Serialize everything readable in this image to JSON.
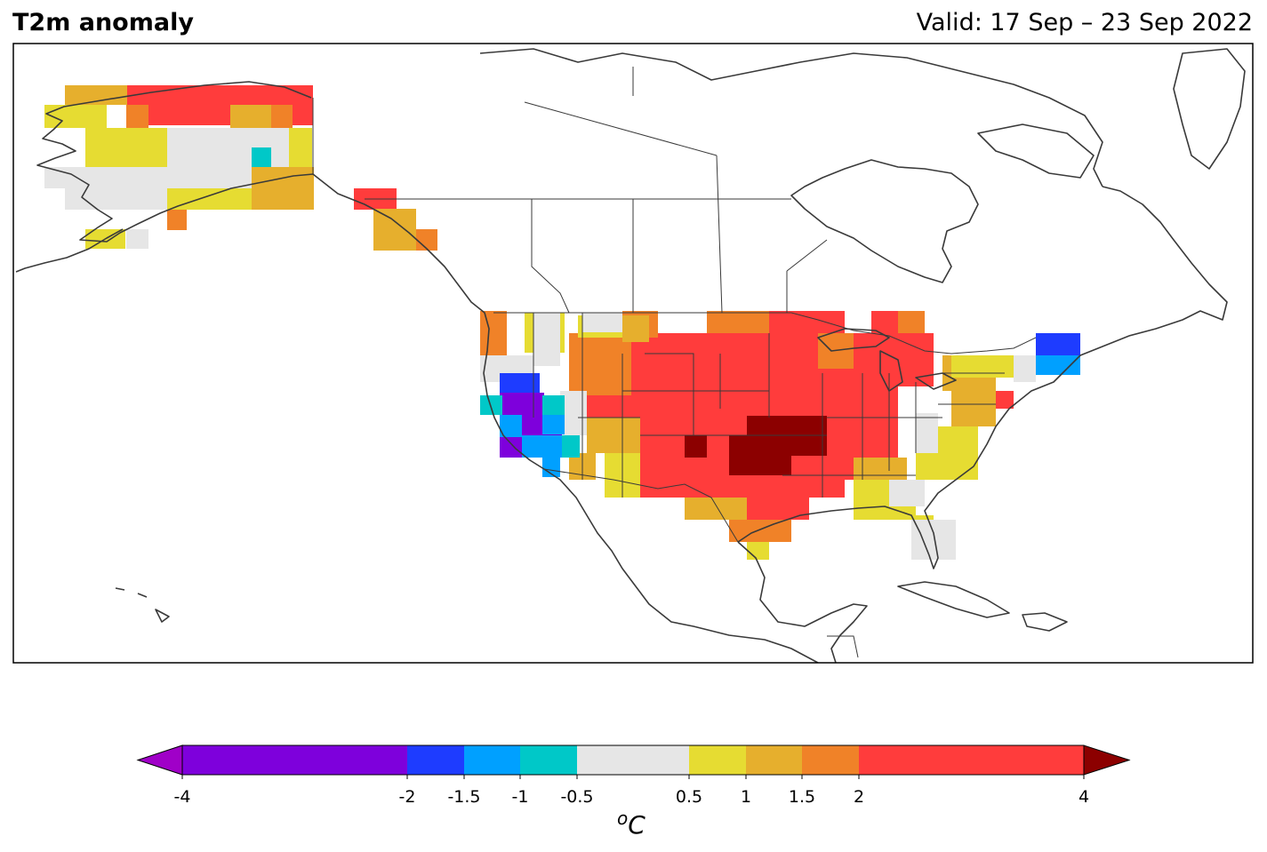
{
  "header": {
    "title": "T2m anomaly",
    "valid": "Valid: 17 Sep – 23 Sep 2022"
  },
  "colorbar": {
    "unit_base": "o",
    "unit_letter": "C",
    "bins": [
      {
        "from": -4,
        "to": -2,
        "color": "#7e00dc"
      },
      {
        "from": -2,
        "to": -1.5,
        "color": "#1e3cff"
      },
      {
        "from": -1.5,
        "to": -1,
        "color": "#00a0ff"
      },
      {
        "from": -1,
        "to": -0.5,
        "color": "#00c8c8"
      },
      {
        "from": -0.5,
        "to": 0.5,
        "color": "#e6e6e6"
      },
      {
        "from": 0.5,
        "to": 1,
        "color": "#e6dc32"
      },
      {
        "from": 1,
        "to": 1.5,
        "color": "#e6af2d"
      },
      {
        "from": 1.5,
        "to": 2,
        "color": "#f08228"
      },
      {
        "from": 2,
        "to": 4,
        "color": "#ff3c3c"
      }
    ],
    "under_color": "#a000c8",
    "over_color": "#8c0000",
    "ticks": [
      "-4",
      "-2",
      "-1.5",
      "-1",
      "-0.5",
      "0.5",
      "1",
      "1.5",
      "2",
      "4"
    ]
  },
  "legend_colors": {
    "c_dark_red": "#8c0000",
    "c_red": "#ff3c3c",
    "c_orange": "#f08228",
    "c_gold": "#e6af2d",
    "c_yellow": "#e6dc32",
    "c_grey": "#e6e6e6",
    "c_teal": "#00c8c8",
    "c_lightblue": "#00a0ff",
    "c_blue": "#1e3cff",
    "c_purple": "#7e00dc"
  },
  "anomaly_regions": [
    {
      "name": "alaska-north",
      "color": "#ff3c3c",
      "cells": [
        [
          142,
          96,
          210,
          45
        ]
      ]
    },
    {
      "name": "alaska-west-gold",
      "color": "#e6af2d",
      "cells": [
        [
          73,
          96,
          70,
          22
        ],
        [
          259,
          118,
          46,
          26
        ]
      ]
    },
    {
      "name": "alaska-orange",
      "color": "#f08228",
      "cells": [
        [
          142,
          118,
          25,
          26
        ],
        [
          305,
          118,
          24,
          26
        ],
        [
          188,
          235,
          22,
          24
        ],
        [
          468,
          258,
          24,
          24
        ]
      ]
    },
    {
      "name": "alaska-yellow",
      "color": "#e6dc32",
      "cells": [
        [
          50,
          118,
          70,
          26
        ],
        [
          96,
          144,
          92,
          44
        ],
        [
          325,
          144,
          26,
          44
        ],
        [
          96,
          258,
          45,
          22
        ],
        [
          188,
          212,
          115,
          24
        ]
      ]
    },
    {
      "name": "alaska-grey",
      "color": "#e6e6e6",
      "cells": [
        [
          188,
          144,
          137,
          44
        ],
        [
          50,
          188,
          233,
          24
        ],
        [
          73,
          212,
          115,
          24
        ],
        [
          142,
          258,
          25,
          22
        ]
      ]
    },
    {
      "name": "alaska-teal",
      "color": "#00c8c8",
      "cells": [
        [
          283,
          166,
          22,
          22
        ]
      ]
    },
    {
      "name": "panhandle-red",
      "color": "#ff3c3c",
      "cells": [
        [
          398,
          212,
          48,
          24
        ]
      ]
    },
    {
      "name": "panhandle-gold",
      "color": "#e6af2d",
      "cells": [
        [
          283,
          188,
          70,
          48
        ],
        [
          420,
          235,
          48,
          47
        ]
      ]
    },
    {
      "name": "usa-red",
      "color": "#ff3c3c",
      "cells": [
        [
          700,
          375,
          310,
          95
        ],
        [
          720,
          465,
          230,
          95
        ],
        [
          650,
          440,
          50,
          30
        ],
        [
          840,
          560,
          70,
          25
        ],
        [
          930,
          420,
          80,
          120
        ],
        [
          1010,
          375,
          40,
          60
        ],
        [
          1090,
          440,
          50,
          20
        ],
        [
          860,
          350,
          90,
          25
        ],
        [
          980,
          350,
          30,
          30
        ]
      ]
    },
    {
      "name": "usa-orange",
      "color": "#f08228",
      "cells": [
        [
          640,
          375,
          70,
          70
        ],
        [
          700,
          350,
          40,
          30
        ],
        [
          795,
          350,
          70,
          25
        ],
        [
          1010,
          350,
          30,
          25
        ],
        [
          700,
          470,
          20,
          90
        ],
        [
          820,
          585,
          70,
          25
        ],
        [
          540,
          350,
          30,
          50
        ],
        [
          920,
          375,
          40,
          40
        ]
      ]
    },
    {
      "name": "usa-gold",
      "color": "#e6af2d",
      "cells": [
        [
          660,
          470,
          60,
          40
        ],
        [
          640,
          510,
          30,
          30
        ],
        [
          1070,
          440,
          50,
          40
        ],
        [
          1060,
          400,
          60,
          40
        ],
        [
          770,
          560,
          70,
          25
        ],
        [
          960,
          515,
          60,
          25
        ],
        [
          700,
          355,
          30,
          30
        ]
      ]
    },
    {
      "name": "usa-yellow",
      "color": "#e6dc32",
      "cells": [
        [
          680,
          510,
          40,
          50
        ],
        [
          960,
          540,
          70,
          45
        ],
        [
          1030,
          510,
          70,
          30
        ],
        [
          1030,
          580,
          20,
          25
        ],
        [
          1050,
          480,
          50,
          30
        ],
        [
          1070,
          400,
          70,
          25
        ],
        [
          840,
          610,
          25,
          20
        ],
        [
          590,
          352,
          45,
          45
        ],
        [
          650,
          355,
          50,
          25
        ],
        [
          640,
          440,
          20,
          30
        ]
      ]
    },
    {
      "name": "usa-grey",
      "color": "#e6e6e6",
      "cells": [
        [
          540,
          400,
          60,
          30
        ],
        [
          630,
          440,
          30,
          50
        ],
        [
          655,
          352,
          45,
          22
        ],
        [
          1030,
          465,
          25,
          45
        ],
        [
          1000,
          540,
          40,
          30
        ],
        [
          1025,
          585,
          50,
          45
        ],
        [
          1140,
          400,
          25,
          30
        ],
        [
          600,
          352,
          30,
          60
        ]
      ]
    },
    {
      "name": "usa-dark-red",
      "color": "#8c0000",
      "cells": [
        [
          840,
          468,
          90,
          45
        ],
        [
          770,
          490,
          25,
          25
        ],
        [
          820,
          490,
          70,
          45
        ]
      ]
    },
    {
      "name": "usa-purple",
      "color": "#7e00dc",
      "cells": [
        [
          562,
          442,
          50,
          45
        ],
        [
          562,
          490,
          25,
          25
        ],
        [
          587,
          467,
          45,
          45
        ]
      ]
    },
    {
      "name": "usa-blue",
      "color": "#1e3cff",
      "cells": [
        [
          562,
          420,
          45,
          22
        ],
        [
          1165,
          375,
          50,
          25
        ]
      ]
    },
    {
      "name": "usa-lightblue",
      "color": "#00a0ff",
      "cells": [
        [
          562,
          467,
          25,
          25
        ],
        [
          587,
          490,
          45,
          25
        ],
        [
          610,
          515,
          20,
          22
        ],
        [
          1165,
          400,
          50,
          22
        ],
        [
          610,
          467,
          25,
          22
        ]
      ]
    },
    {
      "name": "usa-teal",
      "color": "#00c8c8",
      "cells": [
        [
          540,
          445,
          25,
          22
        ],
        [
          610,
          445,
          25,
          22
        ],
        [
          632,
          490,
          20,
          25
        ]
      ]
    }
  ]
}
